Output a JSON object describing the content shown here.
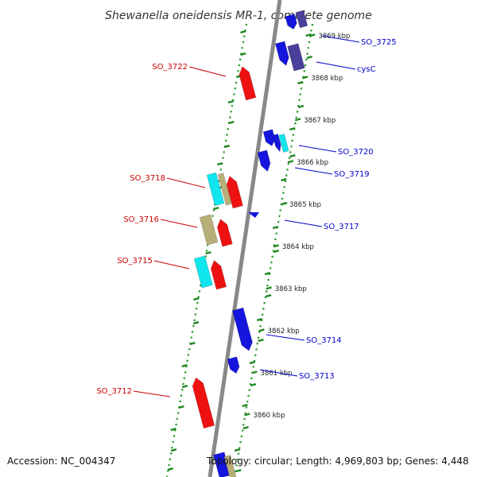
{
  "title": "Shewanella oneidensis MR-1, complete genome",
  "footer": {
    "accession": "Accession: NC_004347",
    "summary": "Topology: circular; Length: 4,969,803 bp; Genes: 4,448"
  },
  "colors": {
    "forward_strand": "#ee1111",
    "reverse_strand": "#1515dd",
    "forward_label": "#cc0000",
    "reverse_label": "#0000cc",
    "gc_marker": "#228822",
    "backbone": "#888888",
    "cyan_feature": "#11e6ee",
    "khaki_feature": "#b8ae78",
    "navy_feature": "#4a3f9a"
  },
  "ticks": [
    "3869 kbp",
    "3868 kbp",
    "3867 kbp",
    "3866 kbp",
    "3865 kbp",
    "3864 kbp",
    "3863 kbp",
    "3862 kbp",
    "3861 kbp",
    "3860 kbp"
  ],
  "forward_labels": [
    "SO_3722",
    "SO_3718",
    "SO_3716",
    "SO_3715",
    "SO_3712"
  ],
  "reverse_labels": [
    "SO_3725",
    "cysC",
    "SO_3720",
    "SO_3719",
    "SO_3717",
    "SO_3714",
    "SO_3713"
  ]
}
